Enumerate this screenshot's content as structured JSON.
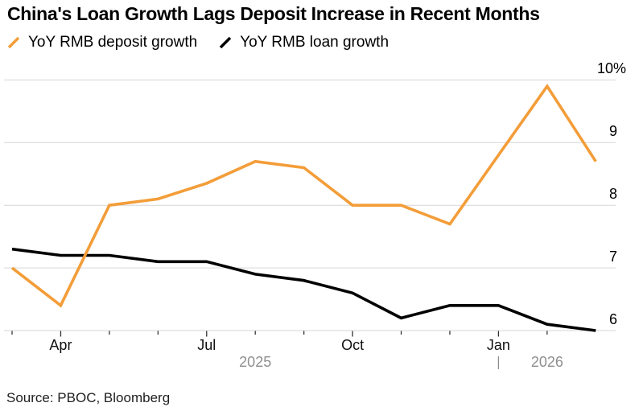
{
  "title": "China's Loan Growth Lags Deposit Increase in Recent Months",
  "legend": [
    {
      "label": "YoY RMB deposit growth",
      "color": "#F39D39"
    },
    {
      "label": "YoY RMB loan growth",
      "color": "#000000"
    }
  ],
  "source": "Source: PBOC, Bloomberg",
  "colors": {
    "deposit_line": "#F39D39",
    "loan_line": "#000000",
    "gridline": "#d6d6d6",
    "tick": "#333333",
    "year_text": "#8f8f8f",
    "axis_text": "#111111"
  },
  "chart_data": {
    "type": "line",
    "x": [
      "2025-03",
      "2025-04",
      "2025-05",
      "2025-06",
      "2025-07",
      "2025-08",
      "2025-09",
      "2025-10",
      "2025-11",
      "2025-12",
      "2026-01",
      "2026-02",
      "2026-03"
    ],
    "series": [
      {
        "name": "YoY RMB deposit growth",
        "color": "#F39D39",
        "values": [
          7.0,
          6.4,
          8.0,
          8.1,
          8.35,
          8.7,
          8.6,
          8.0,
          8.0,
          7.7,
          8.8,
          9.9,
          8.7
        ]
      },
      {
        "name": "YoY RMB loan growth",
        "color": "#000000",
        "values": [
          7.3,
          7.2,
          7.2,
          7.1,
          7.1,
          6.9,
          6.8,
          6.6,
          6.2,
          6.4,
          6.4,
          6.1,
          6.0
        ]
      }
    ],
    "ylim": [
      6,
      10
    ],
    "unit": "%",
    "y_ticks": [
      {
        "value": 10,
        "label": "10%"
      },
      {
        "value": 9,
        "label": "9"
      },
      {
        "value": 8,
        "label": "8"
      },
      {
        "value": 7,
        "label": "7"
      },
      {
        "value": 6,
        "label": "6"
      }
    ],
    "x_tick_labels": [
      {
        "index": 1,
        "label": "Apr"
      },
      {
        "index": 4,
        "label": "Jul"
      },
      {
        "index": 7,
        "label": "Oct"
      },
      {
        "index": 10,
        "label": "Jan"
      }
    ],
    "year_labels": [
      {
        "label": "2025",
        "center_index": 5
      },
      {
        "label": "2026",
        "center_index": 11
      }
    ],
    "year_separator_index": 10,
    "grid": "horizontal",
    "legend_position": "top-left",
    "title": "China's Loan Growth Lags Deposit Increase in Recent Months"
  }
}
